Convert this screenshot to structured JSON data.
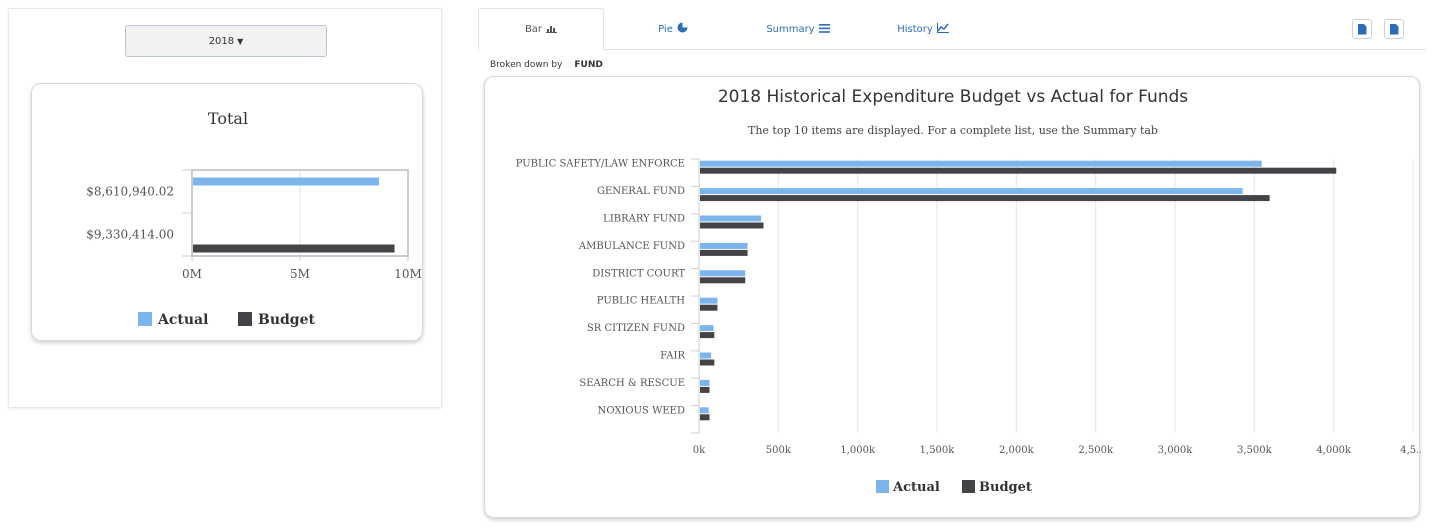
{
  "year_selector": {
    "label": "2018"
  },
  "total_card": {
    "chart_data": {
      "type": "bar",
      "orientation": "horizontal",
      "title": "Total",
      "categories": [
        "$8,610,940.02",
        "$9,330,414.00"
      ],
      "series": [
        {
          "name": "Actual",
          "values": [
            8610940.02,
            null
          ]
        },
        {
          "name": "Budget",
          "values": [
            null,
            9330414.0
          ]
        }
      ],
      "x_ticks": [
        "0M",
        "5M",
        "10M"
      ],
      "xlim": [
        0,
        10000000
      ],
      "grid": true,
      "legend": "bottom"
    }
  },
  "tabs": [
    {
      "label": "Bar",
      "icon": "bar-chart-icon",
      "active": true
    },
    {
      "label": "Pie",
      "icon": "pie-chart-icon",
      "active": false
    },
    {
      "label": "Summary",
      "icon": "list-icon",
      "active": false
    },
    {
      "label": "History",
      "icon": "line-chart-icon",
      "active": false
    }
  ],
  "export_buttons": [
    {
      "icon": "document-icon"
    },
    {
      "icon": "document-icon"
    }
  ],
  "breakdown": {
    "label": "Broken down by",
    "value": "FUND"
  },
  "main_chart": {
    "chart_data": {
      "type": "bar",
      "orientation": "horizontal",
      "title": "2018 Historical Expenditure Budget vs Actual for Funds",
      "subtitle": "The top 10 items are displayed. For a complete list, use the Summary tab",
      "categories": [
        "PUBLIC SAFETY/LAW ENFORCE",
        "GENERAL FUND",
        "LIBRARY FUND",
        "AMBULANCE FUND",
        "DISTRICT COURT",
        "PUBLIC HEALTH",
        "SR CITIZEN FUND",
        "FAIR",
        "SEARCH & RESCUE",
        "NOXIOUS WEED"
      ],
      "series": [
        {
          "name": "Actual",
          "values": [
            3540000,
            3420000,
            385000,
            300000,
            285000,
            110000,
            85000,
            70000,
            60000,
            55000
          ]
        },
        {
          "name": "Budget",
          "values": [
            4010000,
            3590000,
            400000,
            300000,
            285000,
            110000,
            90000,
            90000,
            60000,
            60000
          ]
        }
      ],
      "x_ticks": [
        "0k",
        "500k",
        "1,000k",
        "1,500k",
        "2,000k",
        "2,500k",
        "3,000k",
        "3,500k",
        "4,000k",
        "4,5..."
      ],
      "xlim": [
        0,
        4500000
      ],
      "grid": true,
      "legend": "bottom"
    }
  },
  "colors": {
    "actual": "#7cb5ec",
    "budget": "#434348",
    "grid": "#e6e6e6",
    "link": "#2b6db8"
  }
}
